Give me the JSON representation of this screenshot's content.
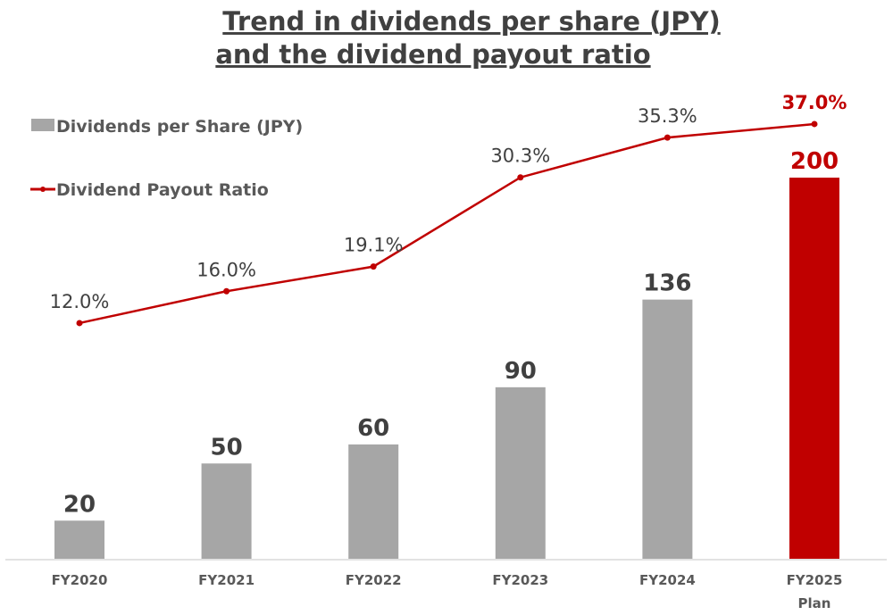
{
  "chart_data": {
    "type": "bar+line",
    "title": [
      "Trend in dividends per share (JPY)",
      "and the dividend payout ratio"
    ],
    "categories": [
      [
        "FY2020"
      ],
      [
        "FY2021"
      ],
      [
        "FY2022"
      ],
      [
        "FY2023"
      ],
      [
        "FY2024"
      ],
      [
        "FY2025",
        "Plan"
      ]
    ],
    "series": [
      {
        "name": "Dividends per Share (JPY)",
        "type": "bar",
        "values": [
          20,
          50,
          60,
          90,
          136,
          200
        ],
        "labels": [
          "20",
          "50",
          "60",
          "90",
          "136",
          "200"
        ],
        "color": "#A6A6A6",
        "highlight_color": "#C00000",
        "highlight_index": 5
      },
      {
        "name": "Dividend Payout Ratio",
        "type": "line",
        "values": [
          12.0,
          16.0,
          19.1,
          30.3,
          35.3,
          37.0
        ],
        "labels": [
          "12.0%",
          "16.0%",
          "19.1%",
          "30.3%",
          "35.3%",
          "37.0%"
        ],
        "color": "#C00000",
        "highlight_index": 5
      }
    ],
    "legend_position": "top-left",
    "grid": false,
    "y_axis_visible": false
  }
}
